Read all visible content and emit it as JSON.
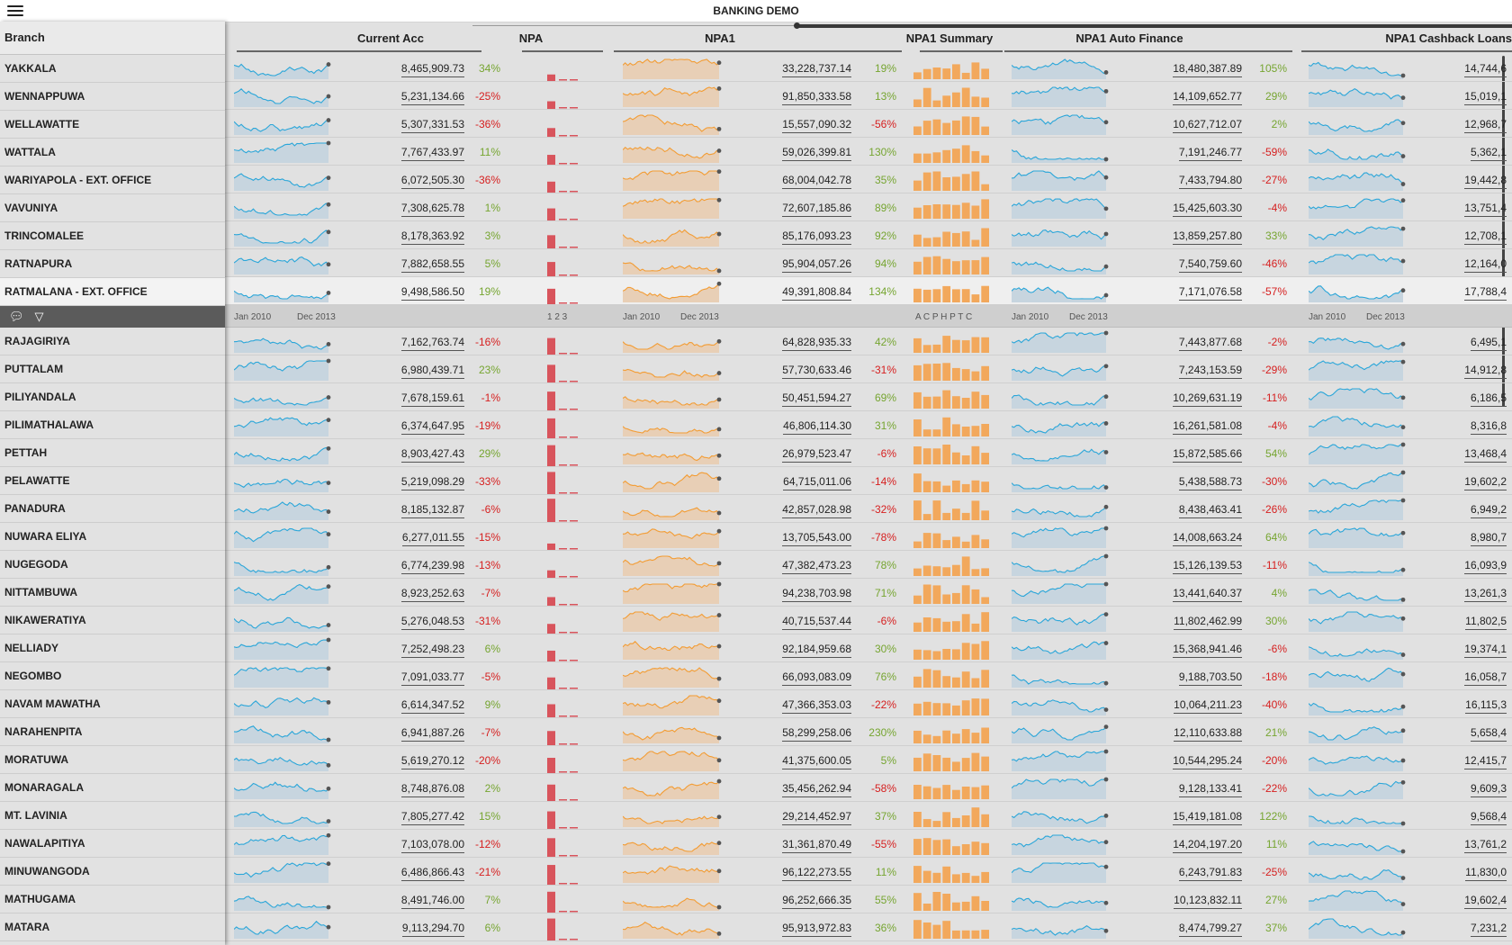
{
  "app": {
    "title": "BANKING DEMO",
    "menu_icon": "hamburger-icon"
  },
  "left": {
    "header": "Branch",
    "toolbar_icons": [
      "comment-icon",
      "filter-icon"
    ]
  },
  "columns": [
    "Current Acc",
    "NPA",
    "NPA1",
    "NPA1 Summary",
    "NPA1 Auto Finance",
    "NPA1 Cashback Loans"
  ],
  "axis": {
    "start": "Jan 2010",
    "end": "Dec 2013",
    "npa_ticks": "1 2 3",
    "summary_ticks": "A C P H P T C"
  },
  "colors": {
    "blue": "#2aa6d9",
    "orange": "#f39c33",
    "red": "#d8545c",
    "pos": "#76a531",
    "neg": "#d62020"
  },
  "selected_index": 8,
  "rows_top": [
    {
      "branch": "YAKKALA",
      "cur": "8,465,909.73",
      "cur_pct": "34%",
      "npa1": "33,228,737.14",
      "npa1_pct": "19%",
      "auto": "18,480,387.89",
      "auto_pct": "105%",
      "cash": "14,744,6"
    },
    {
      "branch": "WENNAPPUWA",
      "cur": "5,231,134.66",
      "cur_pct": "-25%",
      "npa1": "91,850,333.58",
      "npa1_pct": "13%",
      "auto": "14,109,652.77",
      "auto_pct": "29%",
      "cash": "15,019,1"
    },
    {
      "branch": "WELLAWATTE",
      "cur": "5,307,331.53",
      "cur_pct": "-36%",
      "npa1": "15,557,090.32",
      "npa1_pct": "-56%",
      "auto": "10,627,712.07",
      "auto_pct": "2%",
      "cash": "12,968,7"
    },
    {
      "branch": "WATTALA",
      "cur": "7,767,433.97",
      "cur_pct": "11%",
      "npa1": "59,026,399.81",
      "npa1_pct": "130%",
      "auto": "7,191,246.77",
      "auto_pct": "-59%",
      "cash": "5,362,1"
    },
    {
      "branch": "WARIYAPOLA - EXT. OFFICE",
      "cur": "6,072,505.30",
      "cur_pct": "-36%",
      "npa1": "68,004,042.78",
      "npa1_pct": "35%",
      "auto": "7,433,794.80",
      "auto_pct": "-27%",
      "cash": "19,442,8"
    },
    {
      "branch": "VAVUNIYA",
      "cur": "7,308,625.78",
      "cur_pct": "1%",
      "npa1": "72,607,185.86",
      "npa1_pct": "89%",
      "auto": "15,425,603.30",
      "auto_pct": "-4%",
      "cash": "13,751,4"
    },
    {
      "branch": "TRINCOMALEE",
      "cur": "8,178,363.92",
      "cur_pct": "3%",
      "npa1": "85,176,093.23",
      "npa1_pct": "92%",
      "auto": "13,859,257.80",
      "auto_pct": "33%",
      "cash": "12,708,1"
    },
    {
      "branch": "RATNAPURA",
      "cur": "7,882,658.55",
      "cur_pct": "5%",
      "npa1": "95,904,057.26",
      "npa1_pct": "94%",
      "auto": "7,540,759.60",
      "auto_pct": "-46%",
      "cash": "12,164,0"
    },
    {
      "branch": "RATMALANA - EXT. OFFICE",
      "cur": "9,498,586.50",
      "cur_pct": "19%",
      "npa1": "49,391,808.84",
      "npa1_pct": "134%",
      "auto": "7,171,076.58",
      "auto_pct": "-57%",
      "cash": "17,788,4"
    }
  ],
  "rows_bottom": [
    {
      "branch": "RAJAGIRIYA",
      "cur": "7,162,763.74",
      "cur_pct": "-16%",
      "npa1": "64,828,935.33",
      "npa1_pct": "42%",
      "auto": "7,443,877.68",
      "auto_pct": "-2%",
      "cash": "6,495,1"
    },
    {
      "branch": "PUTTALAM",
      "cur": "6,980,439.71",
      "cur_pct": "23%",
      "npa1": "57,730,633.46",
      "npa1_pct": "-31%",
      "auto": "7,243,153.59",
      "auto_pct": "-29%",
      "cash": "14,912,8"
    },
    {
      "branch": "PILIYANDALA",
      "cur": "7,678,159.61",
      "cur_pct": "-1%",
      "npa1": "50,451,594.27",
      "npa1_pct": "69%",
      "auto": "10,269,631.19",
      "auto_pct": "-11%",
      "cash": "6,186,5"
    },
    {
      "branch": "PILIMATHALAWA",
      "cur": "6,374,647.95",
      "cur_pct": "-19%",
      "npa1": "46,806,114.30",
      "npa1_pct": "31%",
      "auto": "16,261,581.08",
      "auto_pct": "-4%",
      "cash": "8,316,8"
    },
    {
      "branch": "PETTAH",
      "cur": "8,903,427.43",
      "cur_pct": "29%",
      "npa1": "26,979,523.47",
      "npa1_pct": "-6%",
      "auto": "15,872,585.66",
      "auto_pct": "54%",
      "cash": "13,468,4"
    },
    {
      "branch": "PELAWATTE",
      "cur": "5,219,098.29",
      "cur_pct": "-33%",
      "npa1": "64,715,011.06",
      "npa1_pct": "-14%",
      "auto": "5,438,588.73",
      "auto_pct": "-30%",
      "cash": "19,602,2"
    },
    {
      "branch": "PANADURA",
      "cur": "8,185,132.87",
      "cur_pct": "-6%",
      "npa1": "42,857,028.98",
      "npa1_pct": "-32%",
      "auto": "8,438,463.41",
      "auto_pct": "-26%",
      "cash": "6,949,2"
    },
    {
      "branch": "NUWARA ELIYA",
      "cur": "6,277,011.55",
      "cur_pct": "-15%",
      "npa1": "13,705,543.00",
      "npa1_pct": "-78%",
      "auto": "14,008,663.24",
      "auto_pct": "64%",
      "cash": "8,980,7"
    },
    {
      "branch": "NUGEGODA",
      "cur": "6,774,239.98",
      "cur_pct": "-13%",
      "npa1": "47,382,473.23",
      "npa1_pct": "78%",
      "auto": "15,126,139.53",
      "auto_pct": "-11%",
      "cash": "16,093,9"
    },
    {
      "branch": "NITTAMBUWA",
      "cur": "8,923,252.63",
      "cur_pct": "-7%",
      "npa1": "94,238,703.98",
      "npa1_pct": "71%",
      "auto": "13,441,640.37",
      "auto_pct": "4%",
      "cash": "13,261,3"
    },
    {
      "branch": "NIKAWERATIYA",
      "cur": "5,276,048.53",
      "cur_pct": "-31%",
      "npa1": "40,715,537.44",
      "npa1_pct": "-6%",
      "auto": "11,802,462.99",
      "auto_pct": "30%",
      "cash": "11,802,5"
    },
    {
      "branch": "NELLIADY",
      "cur": "7,252,498.23",
      "cur_pct": "6%",
      "npa1": "92,184,959.68",
      "npa1_pct": "30%",
      "auto": "15,368,941.46",
      "auto_pct": "-6%",
      "cash": "19,374,1"
    },
    {
      "branch": "NEGOMBO",
      "cur": "7,091,033.77",
      "cur_pct": "-5%",
      "npa1": "66,093,083.09",
      "npa1_pct": "76%",
      "auto": "9,188,703.50",
      "auto_pct": "-18%",
      "cash": "16,058,7"
    },
    {
      "branch": "NAVAM MAWATHA",
      "cur": "6,614,347.52",
      "cur_pct": "9%",
      "npa1": "47,366,353.03",
      "npa1_pct": "-22%",
      "auto": "10,064,211.23",
      "auto_pct": "-40%",
      "cash": "16,115,3"
    },
    {
      "branch": "NARAHENPITA",
      "cur": "6,941,887.26",
      "cur_pct": "-7%",
      "npa1": "58,299,258.06",
      "npa1_pct": "230%",
      "auto": "12,110,633.88",
      "auto_pct": "21%",
      "cash": "5,658,4"
    },
    {
      "branch": "MORATUWA",
      "cur": "5,619,270.12",
      "cur_pct": "-20%",
      "npa1": "41,375,600.05",
      "npa1_pct": "5%",
      "auto": "10,544,295.24",
      "auto_pct": "-20%",
      "cash": "12,415,7"
    },
    {
      "branch": "MONARAGALA",
      "cur": "8,748,876.08",
      "cur_pct": "2%",
      "npa1": "35,456,262.94",
      "npa1_pct": "-58%",
      "auto": "9,128,133.41",
      "auto_pct": "-22%",
      "cash": "9,609,3"
    },
    {
      "branch": "MT. LAVINIA",
      "cur": "7,805,277.42",
      "cur_pct": "15%",
      "npa1": "29,214,452.97",
      "npa1_pct": "37%",
      "auto": "15,419,181.08",
      "auto_pct": "122%",
      "cash": "9,568,4"
    },
    {
      "branch": "NAWALAPITIYA",
      "cur": "7,103,078.00",
      "cur_pct": "-12%",
      "npa1": "31,361,870.49",
      "npa1_pct": "-55%",
      "auto": "14,204,197.20",
      "auto_pct": "11%",
      "cash": "13,761,2"
    },
    {
      "branch": "MINUWANGODA",
      "cur": "6,486,866.43",
      "cur_pct": "-21%",
      "npa1": "96,122,273.55",
      "npa1_pct": "11%",
      "auto": "6,243,791.83",
      "auto_pct": "-25%",
      "cash": "11,830,0"
    },
    {
      "branch": "MATHUGAMA",
      "cur": "8,491,746.00",
      "cur_pct": "7%",
      "npa1": "96,252,666.35",
      "npa1_pct": "55%",
      "auto": "10,123,832.11",
      "auto_pct": "27%",
      "cash": "19,602,4"
    },
    {
      "branch": "MATARA",
      "cur": "9,113,294.70",
      "cur_pct": "6%",
      "npa1": "95,913,972.83",
      "npa1_pct": "36%",
      "auto": "8,474,799.27",
      "auto_pct": "37%",
      "cash": "7,231,2"
    }
  ]
}
